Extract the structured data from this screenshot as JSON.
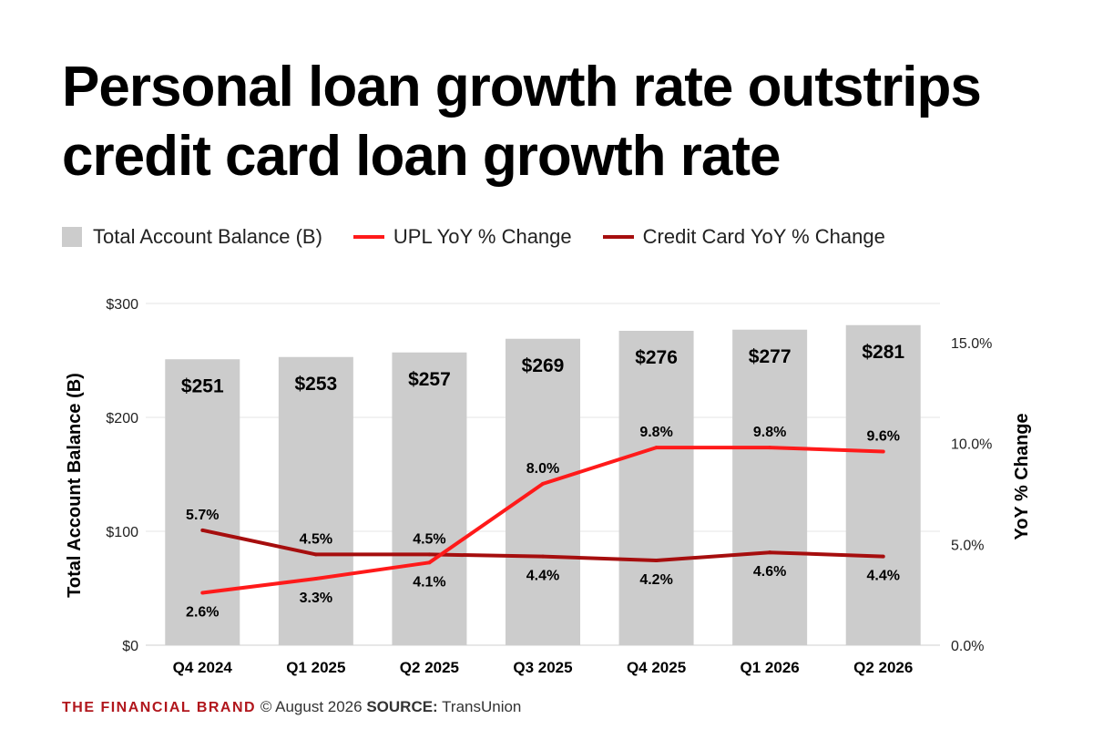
{
  "title_line1": "Personal loan growth rate outstrips",
  "title_line2": "credit card loan growth rate",
  "legend": {
    "bars": "Total Account Balance (B)",
    "upl": "UPL YoY % Change",
    "cc": "Credit Card YoY % Change"
  },
  "footer": {
    "brand": "THE FINANCIAL BRAND",
    "copyright": " © August 2026 ",
    "source_label": "SOURCE:",
    "source": " TransUnion"
  },
  "colors": {
    "bar": "#cccccc",
    "upl": "#ff1a1a",
    "cc": "#a60e0e",
    "grid": "#e6e6e6"
  },
  "chart_data": {
    "type": "bar",
    "categories": [
      "Q4 2024",
      "Q1 2025",
      "Q2 2025",
      "Q3 2025",
      "Q4 2025",
      "Q1 2026",
      "Q2 2026"
    ],
    "series": [
      {
        "name": "Total Account Balance (B)",
        "type": "bar",
        "axis": "left",
        "values": [
          251,
          253,
          257,
          269,
          276,
          277,
          281
        ],
        "labels": [
          "$251",
          "$253",
          "$257",
          "$269",
          "$276",
          "$277",
          "$281"
        ]
      },
      {
        "name": "UPL YoY % Change",
        "type": "line",
        "axis": "right",
        "values": [
          2.6,
          3.3,
          4.1,
          8.0,
          9.8,
          9.8,
          9.6
        ],
        "labels": [
          "2.6%",
          "3.3%",
          "4.1%",
          "8.0%",
          "9.8%",
          "9.8%",
          "9.6%"
        ]
      },
      {
        "name": "Credit Card YoY % Change",
        "type": "line",
        "axis": "right",
        "values": [
          5.7,
          4.5,
          4.5,
          4.4,
          4.2,
          4.6,
          4.4
        ],
        "labels": [
          "5.7%",
          "4.5%",
          "4.5%",
          "4.4%",
          "4.2%",
          "4.6%",
          "4.4%"
        ]
      }
    ],
    "ylabel": "Total Account Balance (B)",
    "y2label": "YoY % Change",
    "ylim": [
      0,
      300
    ],
    "y2lim": [
      0,
      15
    ],
    "yticks": [
      "$0",
      "$100",
      "$200",
      "$300"
    ],
    "y2ticks": [
      "0.0%",
      "5.0%",
      "10.0%",
      "15.0%"
    ],
    "grid": true,
    "legend_position": "top-left"
  }
}
